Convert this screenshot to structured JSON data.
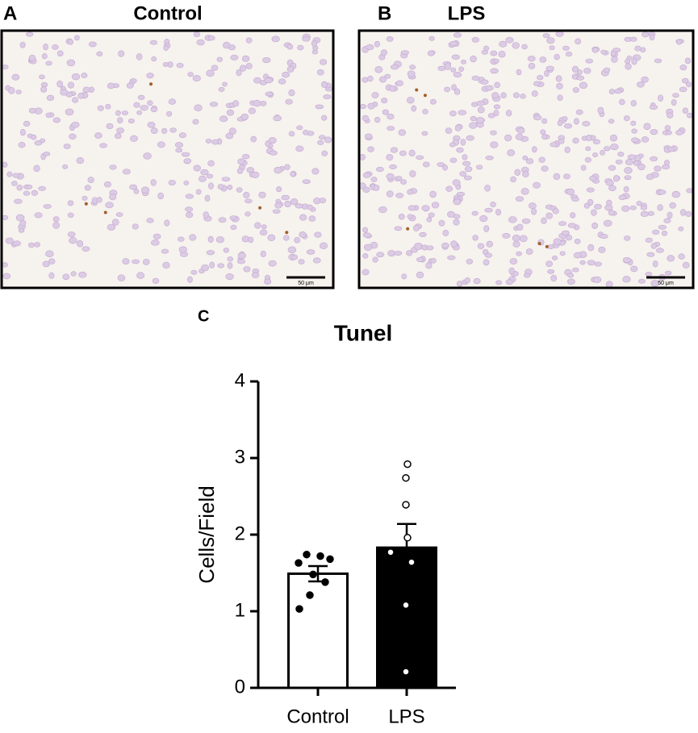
{
  "panels": [
    {
      "label": "A",
      "title": "Control",
      "scale_bar": "50 μm"
    },
    {
      "label": "B",
      "title": "LPS",
      "scale_bar": "50 μm"
    }
  ],
  "chart_data": {
    "type": "bar",
    "panel_label": "C",
    "title": "Tunel",
    "y_label": "Cells/Field",
    "categories": [
      "Control",
      "LPS"
    ],
    "values": [
      1.49,
      1.83
    ],
    "errors": [
      0.1,
      0.31
    ],
    "points": [
      [
        1.74,
        1.72,
        1.68,
        1.63,
        1.48,
        1.38,
        1.21,
        1.03
      ],
      [
        2.92,
        2.74,
        2.39,
        1.96,
        1.77,
        1.64,
        1.08,
        0.21
      ]
    ],
    "colors": [
      "#ffffff",
      "#000000"
    ],
    "ylim": [
      0,
      4
    ],
    "yticks": [
      0,
      1,
      2,
      3,
      4
    ],
    "grid": false
  }
}
